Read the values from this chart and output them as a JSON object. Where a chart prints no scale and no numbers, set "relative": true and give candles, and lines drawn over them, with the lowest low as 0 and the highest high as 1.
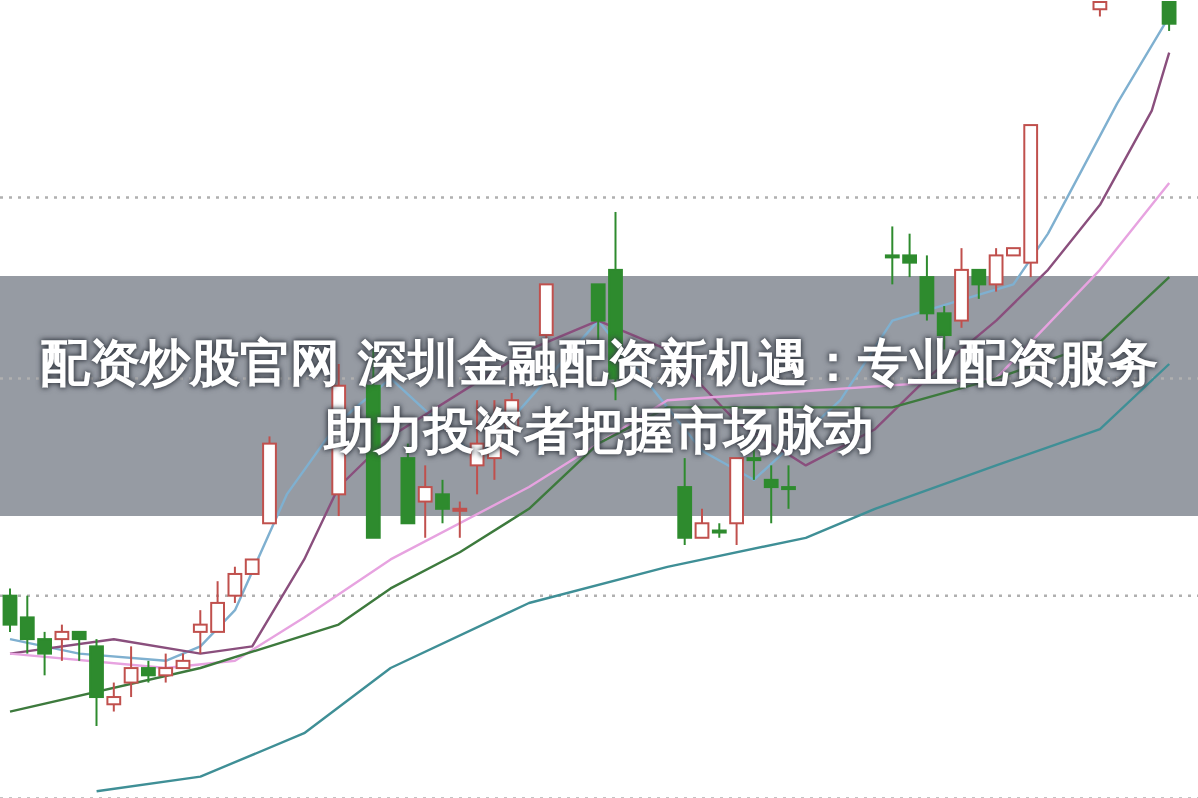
{
  "chart_data": {
    "type": "candlestick",
    "relative": true,
    "title": "配资炒股官网 深圳金融配资新机遇：专业配资服务助力投资者把握市场脉动",
    "categories": [
      null,
      null,
      null,
      null,
      null,
      null,
      null,
      null,
      null,
      null,
      null,
      null,
      null,
      null,
      null,
      null,
      null,
      null,
      null,
      null,
      null,
      null,
      null,
      null,
      null,
      null,
      null,
      null,
      null,
      null,
      null,
      null,
      null,
      null,
      null,
      null,
      null,
      null,
      null,
      null,
      null,
      null,
      null,
      null,
      null,
      null,
      null,
      null,
      null,
      null,
      null,
      null,
      null,
      null,
      null,
      null,
      null,
      null,
      null,
      null,
      null,
      null,
      null,
      null,
      null,
      null,
      null,
      null
    ],
    "ohlc": [
      [
        0.18,
        0.19,
        0.13,
        0.14
      ],
      [
        0.15,
        0.18,
        0.1,
        0.12
      ],
      [
        0.12,
        0.13,
        0.07,
        0.1
      ],
      [
        0.12,
        0.14,
        0.09,
        0.13
      ],
      [
        0.13,
        0.13,
        0.09,
        0.12
      ],
      [
        0.11,
        0.12,
        0.0,
        0.04
      ],
      [
        0.03,
        0.06,
        0.02,
        0.04
      ],
      [
        0.06,
        0.11,
        0.04,
        0.08
      ],
      [
        0.08,
        0.09,
        0.06,
        0.07
      ],
      [
        0.07,
        0.1,
        0.06,
        0.08
      ],
      [
        0.08,
        0.1,
        0.08,
        0.09
      ],
      [
        0.13,
        0.16,
        0.1,
        0.14
      ],
      [
        0.13,
        0.2,
        0.13,
        0.17
      ],
      [
        0.18,
        0.22,
        0.17,
        0.21
      ],
      [
        0.21,
        0.23,
        0.21,
        0.23
      ],
      [
        0.28,
        0.4,
        0.28,
        0.39
      ],
      null,
      null,
      null,
      [
        0.32,
        0.5,
        0.29,
        0.47
      ],
      null,
      [
        0.47,
        0.52,
        0.26,
        0.26
      ],
      null,
      [
        0.37,
        0.39,
        0.28,
        0.28
      ],
      [
        0.31,
        0.36,
        0.26,
        0.33
      ],
      [
        0.32,
        0.34,
        0.28,
        0.3
      ],
      [
        0.3,
        0.31,
        0.26,
        0.3
      ],
      [
        0.36,
        0.45,
        0.32,
        0.39
      ],
      [
        0.37,
        0.45,
        0.34,
        0.41
      ],
      [
        0.41,
        0.46,
        0.41,
        0.45
      ],
      null,
      [
        0.54,
        0.61,
        0.53,
        0.61
      ],
      null,
      null,
      [
        0.61,
        0.61,
        0.53,
        0.56
      ],
      [
        0.63,
        0.71,
        0.45,
        0.48
      ],
      null,
      null,
      null,
      [
        0.33,
        0.37,
        0.25,
        0.26
      ],
      [
        0.26,
        0.3,
        0.26,
        0.28
      ],
      [
        0.27,
        0.28,
        0.26,
        0.27
      ],
      [
        0.28,
        0.37,
        0.25,
        0.37
      ],
      [
        0.37,
        0.39,
        0.34,
        0.37
      ],
      [
        0.34,
        0.36,
        0.28,
        0.33
      ],
      [
        0.33,
        0.36,
        0.3,
        0.33
      ],
      null,
      null,
      null,
      null,
      null,
      [
        0.65,
        0.69,
        0.61,
        0.65
      ],
      [
        0.65,
        0.68,
        0.62,
        0.64
      ],
      [
        0.62,
        0.65,
        0.56,
        0.57
      ],
      [
        0.57,
        0.58,
        0.52,
        0.54
      ],
      [
        0.56,
        0.66,
        0.55,
        0.63
      ],
      [
        0.63,
        0.63,
        0.59,
        0.61
      ],
      [
        0.61,
        0.66,
        0.6,
        0.65
      ],
      [
        0.65,
        0.66,
        0.65,
        0.66
      ],
      [
        0.64,
        0.83,
        0.62,
        0.83
      ],
      null,
      null,
      null,
      [
        0.99,
        1.0,
        0.98,
        1.0
      ],
      null,
      null,
      null,
      [
        1.0,
        1.0,
        0.96,
        0.97
      ]
    ],
    "colors": [
      "#2e8b2e",
      "#2e8b2e",
      "#2e8b2e",
      "#c0504d",
      "#2e8b2e",
      "#2e8b2e",
      "#c0504d",
      "#c0504d",
      "#2e8b2e",
      "#c0504d",
      "#c0504d",
      "#c0504d",
      "#c0504d",
      "#c0504d",
      "#c0504d",
      "#c0504d",
      null,
      null,
      null,
      "#c0504d",
      null,
      "#2e8b2e",
      null,
      "#2e8b2e",
      "#c0504d",
      "#2e8b2e",
      "#c0504d",
      "#c0504d",
      "#c0504d",
      "#c0504d",
      null,
      "#c0504d",
      null,
      null,
      "#2e8b2e",
      "#2e8b2e",
      null,
      null,
      null,
      "#2e8b2e",
      "#c0504d",
      "#2e8b2e",
      "#c0504d",
      "#2e8b2e",
      "#2e8b2e",
      "#2e8b2e",
      null,
      null,
      null,
      null,
      null,
      "#2e8b2e",
      "#2e8b2e",
      "#2e8b2e",
      "#2e8b2e",
      "#c0504d",
      "#2e8b2e",
      "#c0504d",
      "#c0504d",
      "#c0504d",
      null,
      null,
      null,
      "#c0504d",
      null,
      null,
      null,
      "#2e8b2e"
    ],
    "series": [
      {
        "type": "line",
        "color": "#7fb0d0",
        "values": [
          0.12,
          null,
          null,
          null,
          0.1,
          null,
          null,
          null,
          null,
          0.09,
          null,
          0.11,
          null,
          0.16,
          null,
          null,
          0.32,
          null,
          null,
          0.42,
          null,
          null,
          0.48,
          null,
          null,
          null,
          null,
          0.37,
          null,
          null,
          null,
          null,
          null,
          null,
          0.56,
          null,
          null,
          null,
          null,
          null,
          0.38,
          null,
          null,
          0.34,
          null,
          null,
          null,
          null,
          0.45,
          null,
          null,
          0.56,
          null,
          null,
          null,
          null,
          null,
          null,
          0.61,
          null,
          0.68,
          null,
          0.77,
          null,
          0.86,
          null,
          null,
          0.98
        ]
      },
      {
        "type": "line",
        "color": "#8a4f7d",
        "values": [
          0.1,
          null,
          null,
          null,
          null,
          null,
          0.12,
          null,
          null,
          null,
          null,
          0.1,
          null,
          null,
          0.11,
          null,
          null,
          0.23,
          null,
          0.33,
          null,
          null,
          0.4,
          null,
          null,
          null,
          null,
          null,
          null,
          null,
          0.52,
          null,
          null,
          null,
          0.56,
          null,
          null,
          null,
          0.52,
          null,
          null,
          null,
          0.42,
          null,
          0.39,
          null,
          0.36,
          null,
          null,
          null,
          0.41,
          null,
          null,
          0.48,
          null,
          null,
          null,
          0.56,
          null,
          null,
          0.63,
          null,
          null,
          0.72,
          null,
          null,
          0.85,
          0.93
        ]
      },
      {
        "type": "line",
        "color": "#e7a3e0",
        "values": [
          0.1,
          null,
          null,
          null,
          null,
          null,
          null,
          null,
          null,
          0.08,
          null,
          null,
          null,
          0.09,
          null,
          null,
          null,
          0.15,
          null,
          null,
          null,
          null,
          0.23,
          null,
          null,
          null,
          null,
          null,
          null,
          null,
          0.33,
          null,
          null,
          null,
          null,
          null,
          null,
          null,
          0.45,
          null,
          null,
          null,
          null,
          null,
          null,
          null,
          null,
          null,
          null,
          null,
          null,
          null,
          null,
          null,
          null,
          null,
          null,
          0.48,
          null,
          null,
          null,
          null,
          null,
          0.63,
          null,
          null,
          null,
          0.75
        ]
      },
      {
        "type": "line",
        "color": "#3d7a3d",
        "values": [
          0.02,
          null,
          null,
          null,
          null,
          null,
          null,
          null,
          null,
          null,
          null,
          0.08,
          null,
          null,
          null,
          null,
          null,
          null,
          null,
          0.14,
          null,
          null,
          0.19,
          null,
          null,
          null,
          0.24,
          null,
          null,
          null,
          0.3,
          null,
          null,
          null,
          0.39,
          null,
          null,
          null,
          0.44,
          null,
          null,
          null,
          null,
          null,
          null,
          null,
          0.44,
          null,
          null,
          null,
          null,
          0.44,
          null,
          null,
          null,
          null,
          null,
          0.48,
          null,
          null,
          null,
          null,
          null,
          0.53,
          null,
          null,
          null,
          0.62
        ]
      },
      {
        "type": "line",
        "color": "#3f8f96",
        "values": [
          null,
          null,
          null,
          null,
          null,
          -0.09,
          null,
          null,
          null,
          null,
          null,
          -0.07,
          null,
          null,
          null,
          null,
          null,
          -0.01,
          null,
          null,
          null,
          null,
          0.08,
          null,
          null,
          null,
          null,
          null,
          null,
          null,
          0.17,
          null,
          null,
          null,
          null,
          null,
          null,
          null,
          0.22,
          null,
          null,
          null,
          null,
          null,
          null,
          null,
          0.26,
          null,
          null,
          null,
          0.3,
          null,
          null,
          null,
          null,
          null,
          null,
          0.36,
          null,
          null,
          null,
          null,
          null,
          0.41,
          null,
          null,
          null,
          0.5
        ]
      }
    ],
    "ref_lines": [
      {
        "axis": "y",
        "value": 0.73,
        "color": "#b0b0b0",
        "line_style": "dotted"
      },
      {
        "axis": "y",
        "value": 0.48,
        "color": "#b0b0b0",
        "line_style": "dotted"
      },
      {
        "axis": "y",
        "value": 0.18,
        "color": "#b0b0b0",
        "line_style": "dotted"
      },
      {
        "axis": "y",
        "value": -0.1,
        "color": "#b0b0b0",
        "line_style": "dotted"
      }
    ]
  }
}
